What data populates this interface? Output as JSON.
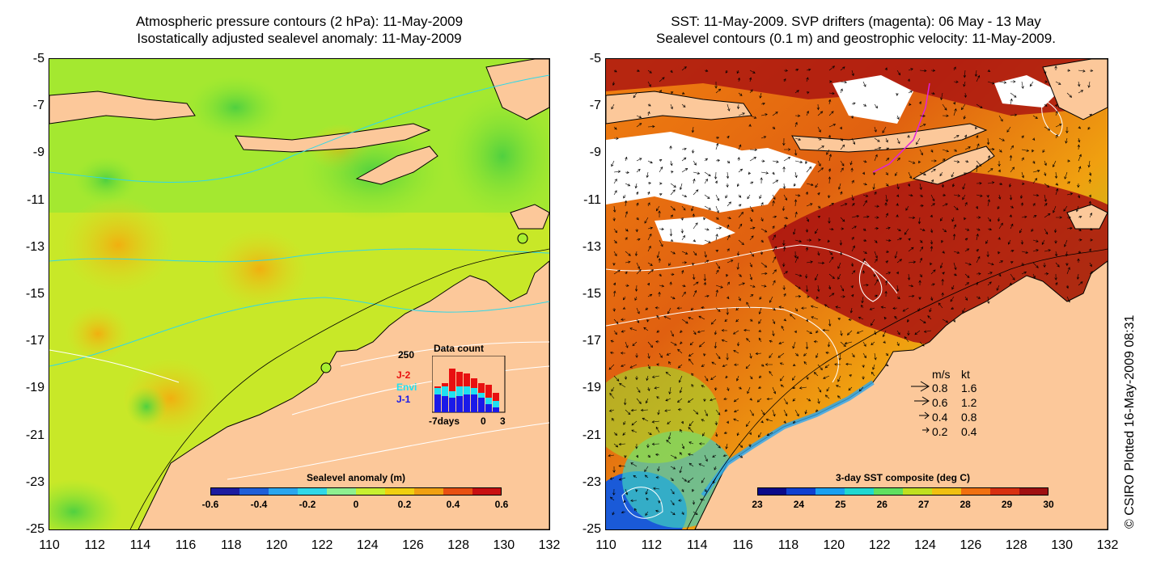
{
  "left_panel": {
    "title_line1": "Atmospheric pressure contours (2 hPa): 11-May-2009",
    "title_line2": "Isostatically adjusted sealevel anomaly: 11-May-2009",
    "colorbar": {
      "label": "Sealevel anomaly (m)",
      "ticks": [
        "-0.6",
        "-0.4",
        "-0.2",
        "0",
        "0.2",
        "0.4",
        "0.6"
      ],
      "colors": [
        "#1c1ca0",
        "#1f5fd8",
        "#2aa6ee",
        "#30d8e8",
        "#8ef090",
        "#c8f030",
        "#f0d010",
        "#f0a010",
        "#e85010",
        "#c81010"
      ]
    },
    "inset": {
      "title": "Data count",
      "ymax_label": "250",
      "legend": [
        {
          "label": "J-2",
          "color": "#e81010"
        },
        {
          "label": "Envi",
          "color": "#20e0f0"
        },
        {
          "label": "J-1",
          "color": "#1a1ae8"
        }
      ],
      "x_label_left": "-7days",
      "x_label_mid": "0",
      "x_label_right": "3"
    }
  },
  "right_panel": {
    "title_line1": "SST: 11-May-2009. SVP drifters (magenta): 06 May - 13 May",
    "title_line2": "Sealevel contours (0.1 m) and geostrophic velocity: 11-May-2009.",
    "colorbar": {
      "label": "3-day SST composite (deg C)",
      "ticks": [
        "23",
        "24",
        "25",
        "26",
        "27",
        "28",
        "29",
        "30"
      ],
      "colors": [
        "#0a0a8a",
        "#1040d0",
        "#1aa0f0",
        "#20d8d0",
        "#60e060",
        "#c0e020",
        "#f0c010",
        "#f07010",
        "#d83010",
        "#a01010"
      ]
    },
    "velocity_legend": {
      "header_ms": "m/s",
      "header_kt": "kt",
      "rows": [
        {
          "ms": "0.8",
          "kt": "1.6"
        },
        {
          "ms": "0.6",
          "kt": "1.2"
        },
        {
          "ms": "0.4",
          "kt": "0.8"
        },
        {
          "ms": "0.2",
          "kt": "0.4"
        }
      ]
    }
  },
  "axes": {
    "y_ticks": [
      "-5",
      "-7",
      "-9",
      "-11",
      "-13",
      "-15",
      "-17",
      "-19",
      "-21",
      "-23",
      "-25"
    ],
    "x_ticks": [
      "110",
      "112",
      "114",
      "116",
      "118",
      "120",
      "122",
      "124",
      "126",
      "128",
      "130",
      "132"
    ]
  },
  "colors": {
    "land": "#fcc89a",
    "sea_green": "#9ef030",
    "cloud": "#ffffff"
  },
  "credit": "© CSIRO Plotted 16-May-2009 08:31"
}
